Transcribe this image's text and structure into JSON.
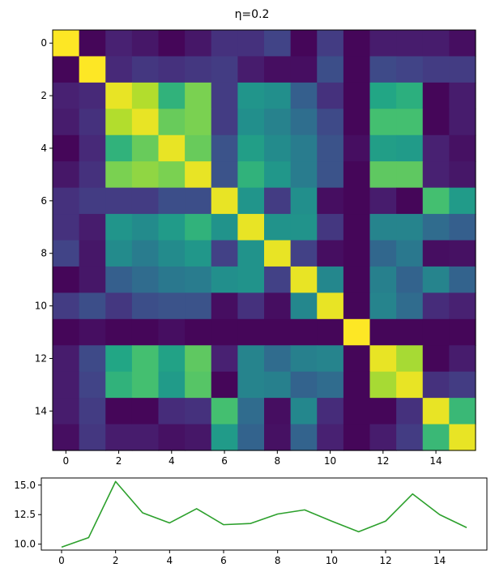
{
  "chart_data": [
    {
      "type": "heatmap",
      "title": "η=0.2",
      "colormap": "viridis",
      "vmin": 0,
      "vmax": 1,
      "rows": 16,
      "cols": 16,
      "xticks": [
        "0",
        "2",
        "4",
        "6",
        "8",
        "10",
        "12",
        "14"
      ],
      "yticks": [
        "0",
        "2",
        "4",
        "6",
        "8",
        "10",
        "12",
        "14"
      ],
      "tick_values": [
        0,
        2,
        4,
        6,
        8,
        10,
        12,
        14
      ],
      "matrix": [
        [
          1.0,
          0.02,
          0.12,
          0.08,
          0.02,
          0.08,
          0.18,
          0.18,
          0.25,
          0.02,
          0.22,
          0.02,
          0.1,
          0.1,
          0.1,
          0.05
        ],
        [
          0.02,
          1.0,
          0.15,
          0.2,
          0.18,
          0.2,
          0.22,
          0.1,
          0.05,
          0.05,
          0.3,
          0.02,
          0.28,
          0.25,
          0.22,
          0.22
        ],
        [
          0.12,
          0.15,
          0.98,
          0.93,
          0.78,
          0.88,
          0.22,
          0.65,
          0.62,
          0.38,
          0.18,
          0.02,
          0.74,
          0.77,
          0.02,
          0.1
        ],
        [
          0.1,
          0.18,
          0.93,
          0.98,
          0.86,
          0.88,
          0.22,
          0.62,
          0.55,
          0.45,
          0.28,
          0.02,
          0.82,
          0.82,
          0.02,
          0.1
        ],
        [
          0.02,
          0.15,
          0.78,
          0.86,
          0.98,
          0.86,
          0.32,
          0.7,
          0.6,
          0.52,
          0.32,
          0.05,
          0.7,
          0.68,
          0.12,
          0.06
        ],
        [
          0.08,
          0.18,
          0.88,
          0.9,
          0.88,
          0.98,
          0.32,
          0.78,
          0.66,
          0.52,
          0.32,
          0.02,
          0.85,
          0.85,
          0.12,
          0.08
        ],
        [
          0.18,
          0.22,
          0.22,
          0.22,
          0.3,
          0.3,
          0.98,
          0.65,
          0.22,
          0.62,
          0.05,
          0.02,
          0.1,
          0.02,
          0.82,
          0.68
        ],
        [
          0.18,
          0.1,
          0.65,
          0.6,
          0.68,
          0.78,
          0.64,
          0.98,
          0.64,
          0.64,
          0.2,
          0.02,
          0.56,
          0.56,
          0.44,
          0.38
        ],
        [
          0.25,
          0.08,
          0.6,
          0.52,
          0.6,
          0.66,
          0.24,
          0.64,
          0.98,
          0.24,
          0.05,
          0.02,
          0.42,
          0.5,
          0.05,
          0.06
        ],
        [
          0.02,
          0.08,
          0.38,
          0.44,
          0.5,
          0.52,
          0.62,
          0.64,
          0.24,
          0.98,
          0.58,
          0.02,
          0.54,
          0.4,
          0.56,
          0.4
        ],
        [
          0.22,
          0.3,
          0.2,
          0.3,
          0.32,
          0.32,
          0.05,
          0.18,
          0.05,
          0.58,
          0.98,
          0.02,
          0.56,
          0.44,
          0.16,
          0.12
        ],
        [
          0.02,
          0.05,
          0.02,
          0.02,
          0.05,
          0.02,
          0.02,
          0.02,
          0.02,
          0.02,
          0.02,
          1.0,
          0.02,
          0.02,
          0.02,
          0.02
        ],
        [
          0.1,
          0.28,
          0.74,
          0.82,
          0.72,
          0.85,
          0.12,
          0.56,
          0.44,
          0.54,
          0.56,
          0.02,
          0.98,
          0.92,
          0.02,
          0.1
        ],
        [
          0.1,
          0.25,
          0.78,
          0.82,
          0.68,
          0.84,
          0.02,
          0.56,
          0.54,
          0.4,
          0.44,
          0.02,
          0.92,
          0.98,
          0.18,
          0.22
        ],
        [
          0.1,
          0.22,
          0.02,
          0.02,
          0.16,
          0.18,
          0.82,
          0.44,
          0.05,
          0.58,
          0.16,
          0.02,
          0.02,
          0.18,
          0.98,
          0.8
        ],
        [
          0.05,
          0.2,
          0.1,
          0.1,
          0.06,
          0.08,
          0.68,
          0.4,
          0.06,
          0.4,
          0.12,
          0.02,
          0.1,
          0.22,
          0.8,
          0.98
        ]
      ]
    },
    {
      "type": "line",
      "color": "#2ca02c",
      "x": [
        0,
        1,
        2,
        3,
        4,
        5,
        6,
        7,
        8,
        9,
        10,
        11,
        12,
        13,
        14,
        15
      ],
      "y": [
        9.75,
        10.55,
        15.3,
        12.65,
        11.8,
        13.0,
        11.65,
        11.75,
        12.55,
        12.9,
        11.95,
        11.05,
        11.95,
        14.25,
        12.5,
        11.4
      ],
      "xlim": [
        -0.75,
        15.75
      ],
      "ylim": [
        9.5,
        15.6
      ],
      "xticks": [
        "0",
        "2",
        "4",
        "6",
        "8",
        "10",
        "12",
        "14"
      ],
      "xtick_values": [
        0,
        2,
        4,
        6,
        8,
        10,
        12,
        14
      ],
      "yticks": [
        "10.0",
        "12.5",
        "15.0"
      ],
      "ytick_values": [
        10.0,
        12.5,
        15.0
      ]
    }
  ]
}
